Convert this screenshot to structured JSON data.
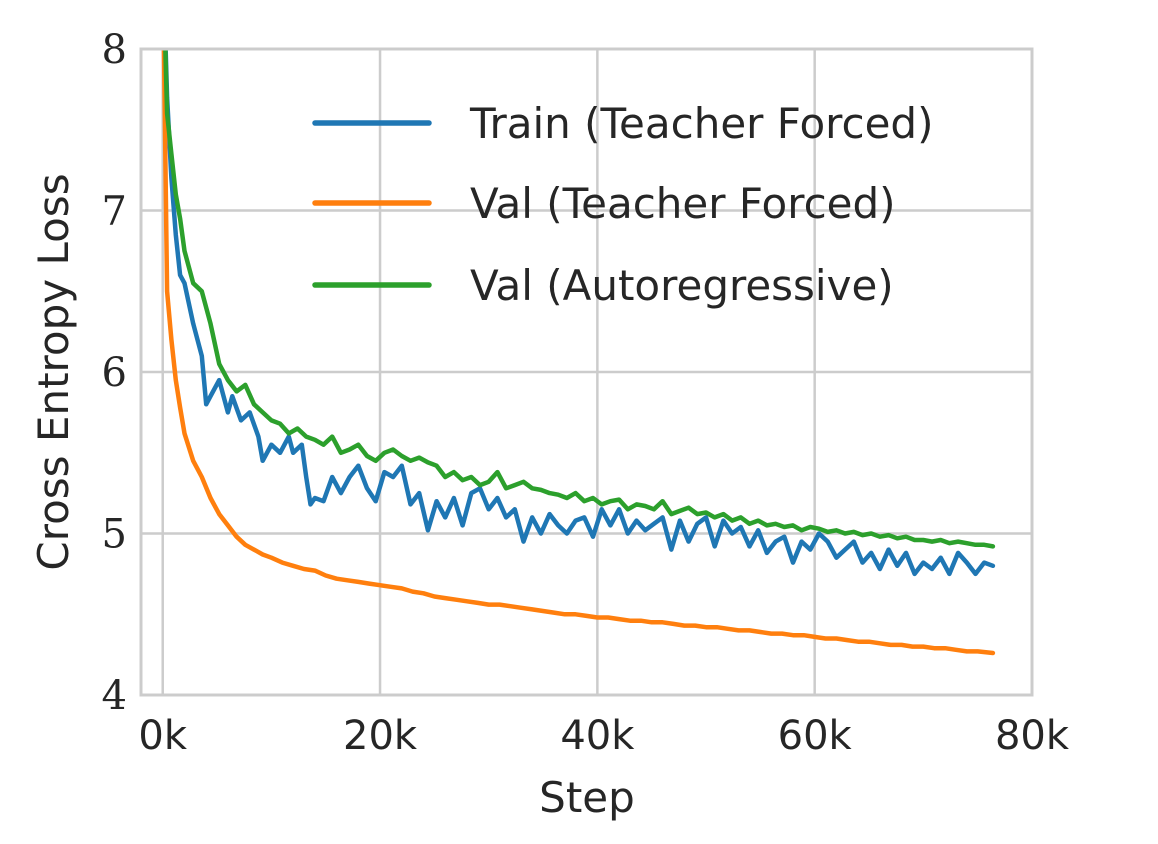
{
  "chart_data": {
    "type": "line",
    "title": "",
    "xlabel": "Step",
    "ylabel": "Cross Entropy Loss",
    "xlim": [
      -2000,
      80000
    ],
    "ylim": [
      4,
      8
    ],
    "xticks": [
      0,
      20000,
      40000,
      60000,
      80000
    ],
    "xtick_labels": [
      "0k",
      "20k",
      "40k",
      "60k",
      "80k"
    ],
    "yticks": [
      4,
      5,
      6,
      7,
      8
    ],
    "ytick_labels": [
      "4",
      "5",
      "6",
      "7",
      "8"
    ],
    "grid": true,
    "legend_position": "top-right",
    "series": [
      {
        "name": "Train (Teacher Forced)",
        "color": "#1f77b4",
        "x": [
          0,
          400,
          800,
          1200,
          1600,
          2000,
          2800,
          3600,
          4000,
          4400,
          5200,
          6000,
          6400,
          7200,
          8000,
          8800,
          9200,
          10000,
          10800,
          11600,
          12000,
          12800,
          13200,
          13600,
          14000,
          14800,
          15600,
          16400,
          17200,
          18000,
          18800,
          19600,
          20400,
          21200,
          22000,
          22800,
          23600,
          24400,
          25200,
          26000,
          26800,
          27600,
          28400,
          29200,
          30000,
          30800,
          31600,
          32400,
          33200,
          34000,
          34800,
          35600,
          36400,
          37200,
          38000,
          38800,
          39600,
          40400,
          41200,
          42000,
          42800,
          43600,
          44400,
          45200,
          46000,
          46800,
          47600,
          48400,
          49200,
          50000,
          50800,
          51600,
          52400,
          53200,
          54000,
          54800,
          55600,
          56400,
          57200,
          58000,
          58800,
          59600,
          60400,
          61200,
          62000,
          62800,
          63600,
          64400,
          65200,
          66000,
          66800,
          67600,
          68400,
          69200,
          70000,
          70800,
          71600,
          72400,
          73200,
          74000,
          74800,
          75600,
          76400
        ],
        "values": [
          8.6,
          7.7,
          7.2,
          6.85,
          6.6,
          6.55,
          6.3,
          6.1,
          5.8,
          5.85,
          5.95,
          5.75,
          5.85,
          5.7,
          5.75,
          5.6,
          5.45,
          5.55,
          5.5,
          5.6,
          5.5,
          5.55,
          5.35,
          5.18,
          5.22,
          5.2,
          5.35,
          5.25,
          5.35,
          5.42,
          5.28,
          5.2,
          5.38,
          5.35,
          5.42,
          5.18,
          5.25,
          5.02,
          5.2,
          5.1,
          5.22,
          5.05,
          5.25,
          5.28,
          5.15,
          5.22,
          5.1,
          5.15,
          4.95,
          5.1,
          5.0,
          5.12,
          5.05,
          5.0,
          5.08,
          5.1,
          4.98,
          5.15,
          5.05,
          5.15,
          5.0,
          5.08,
          5.02,
          5.06,
          5.1,
          4.9,
          5.08,
          4.95,
          5.06,
          5.1,
          4.92,
          5.08,
          5.0,
          5.04,
          4.92,
          5.02,
          4.88,
          4.95,
          4.98,
          4.82,
          4.95,
          4.9,
          5.0,
          4.95,
          4.85,
          4.9,
          4.95,
          4.82,
          4.88,
          4.78,
          4.9,
          4.8,
          4.88,
          4.75,
          4.82,
          4.78,
          4.85,
          4.75,
          4.88,
          4.82,
          4.75,
          4.82,
          4.8
        ]
      },
      {
        "name": "Val (Teacher Forced)",
        "color": "#ff7f0e",
        "x": [
          0,
          400,
          800,
          1200,
          1600,
          2000,
          2800,
          3600,
          4400,
          5200,
          6000,
          6800,
          7600,
          8400,
          9200,
          10000,
          11000,
          12000,
          13000,
          14000,
          15000,
          16000,
          17000,
          18000,
          19000,
          20000,
          21000,
          22000,
          23000,
          24000,
          25000,
          26000,
          27000,
          28000,
          29000,
          30000,
          31000,
          32000,
          33000,
          34000,
          35000,
          36000,
          37000,
          38000,
          39000,
          40000,
          41000,
          42000,
          43000,
          44000,
          45000,
          46000,
          47000,
          48000,
          49000,
          50000,
          51000,
          52000,
          53000,
          54000,
          55000,
          56000,
          57000,
          58000,
          59000,
          60000,
          61000,
          62000,
          63000,
          64000,
          65000,
          66000,
          67000,
          68000,
          69000,
          70000,
          71000,
          72000,
          73000,
          74000,
          75000,
          76400
        ],
        "values": [
          8.6,
          6.5,
          6.2,
          5.95,
          5.78,
          5.62,
          5.45,
          5.35,
          5.22,
          5.12,
          5.05,
          4.98,
          4.93,
          4.9,
          4.87,
          4.85,
          4.82,
          4.8,
          4.78,
          4.77,
          4.74,
          4.72,
          4.71,
          4.7,
          4.69,
          4.68,
          4.67,
          4.66,
          4.64,
          4.63,
          4.61,
          4.6,
          4.59,
          4.58,
          4.57,
          4.56,
          4.56,
          4.55,
          4.54,
          4.53,
          4.52,
          4.51,
          4.5,
          4.5,
          4.49,
          4.48,
          4.48,
          4.47,
          4.46,
          4.46,
          4.45,
          4.45,
          4.44,
          4.43,
          4.43,
          4.42,
          4.42,
          4.41,
          4.4,
          4.4,
          4.39,
          4.38,
          4.38,
          4.37,
          4.37,
          4.36,
          4.35,
          4.35,
          4.34,
          4.33,
          4.33,
          4.32,
          4.31,
          4.31,
          4.3,
          4.3,
          4.29,
          4.29,
          4.28,
          4.27,
          4.27,
          4.26
        ]
      },
      {
        "name": "Val (Autoregressive)",
        "color": "#2ca02c",
        "x": [
          0,
          400,
          800,
          1200,
          1600,
          2000,
          2800,
          3600,
          4400,
          5200,
          6000,
          6800,
          7600,
          8400,
          9200,
          10000,
          10800,
          11600,
          12400,
          13200,
          14000,
          14800,
          15600,
          16400,
          17200,
          18000,
          18800,
          19600,
          20400,
          21200,
          22000,
          22800,
          23600,
          24400,
          25200,
          26000,
          26800,
          27600,
          28400,
          29200,
          30000,
          30800,
          31600,
          32400,
          33200,
          34000,
          34800,
          35600,
          36400,
          37200,
          38000,
          38800,
          39600,
          40400,
          41200,
          42000,
          42800,
          43600,
          44400,
          45200,
          46000,
          46800,
          47600,
          48400,
          49200,
          50000,
          50800,
          51600,
          52400,
          53200,
          54000,
          54800,
          55600,
          56400,
          57200,
          58000,
          58800,
          59600,
          60400,
          61200,
          62000,
          62800,
          63600,
          64400,
          65200,
          66000,
          66800,
          67600,
          68400,
          69200,
          70000,
          70800,
          71600,
          72400,
          73200,
          74000,
          74800,
          75600,
          76400
        ],
        "values": [
          8.6,
          7.6,
          7.35,
          7.1,
          6.95,
          6.75,
          6.55,
          6.5,
          6.3,
          6.05,
          5.95,
          5.88,
          5.92,
          5.8,
          5.75,
          5.7,
          5.68,
          5.62,
          5.65,
          5.6,
          5.58,
          5.55,
          5.6,
          5.5,
          5.52,
          5.55,
          5.48,
          5.45,
          5.5,
          5.52,
          5.48,
          5.45,
          5.47,
          5.44,
          5.42,
          5.35,
          5.38,
          5.33,
          5.35,
          5.3,
          5.32,
          5.38,
          5.28,
          5.3,
          5.32,
          5.28,
          5.27,
          5.25,
          5.24,
          5.22,
          5.25,
          5.2,
          5.22,
          5.18,
          5.2,
          5.21,
          5.15,
          5.18,
          5.17,
          5.15,
          5.2,
          5.12,
          5.14,
          5.16,
          5.12,
          5.13,
          5.1,
          5.12,
          5.08,
          5.1,
          5.06,
          5.08,
          5.05,
          5.06,
          5.04,
          5.05,
          5.02,
          5.04,
          5.03,
          5.01,
          5.02,
          5.0,
          5.01,
          4.99,
          5.0,
          4.98,
          4.99,
          4.97,
          4.98,
          4.96,
          4.96,
          4.95,
          4.96,
          4.94,
          4.95,
          4.94,
          4.93,
          4.93,
          4.92
        ]
      }
    ]
  }
}
